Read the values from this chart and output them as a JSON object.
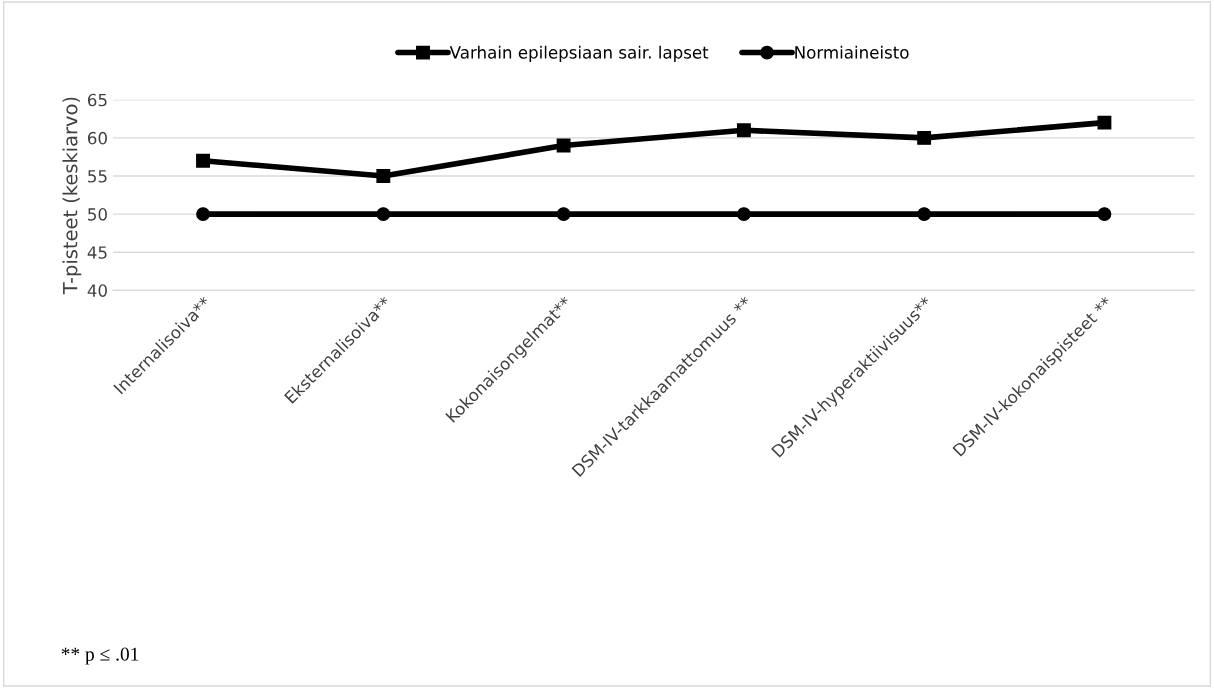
{
  "chart_data": {
    "type": "line",
    "ylabel": "T-pisteet (keskiarvo)",
    "categories": [
      "Internalisoiva**",
      "Eksternalisoiva**",
      "Kokonaisongelmat**",
      "DSM-IV-tarkkaamattomuus **",
      "DSM-IV-hyperaktiivisuus**",
      "DSM-IV-kokonaispisteet **"
    ],
    "series": [
      {
        "name": "Varhain epilepsiaan sair. lapset",
        "color": "#000000",
        "marker": "square",
        "values": [
          57,
          55,
          59,
          61,
          60,
          62
        ]
      },
      {
        "name": "Normiaineisto",
        "color": "#000000",
        "marker": "circle",
        "values": [
          50,
          50,
          50,
          50,
          50,
          50
        ]
      }
    ],
    "ylim": [
      40,
      65
    ],
    "yticks": [
      40,
      45,
      50,
      55,
      60,
      65
    ],
    "grid": "y",
    "legend": "top",
    "line_style": "solid",
    "annotations": [
      "** p ≤ .01"
    ]
  }
}
